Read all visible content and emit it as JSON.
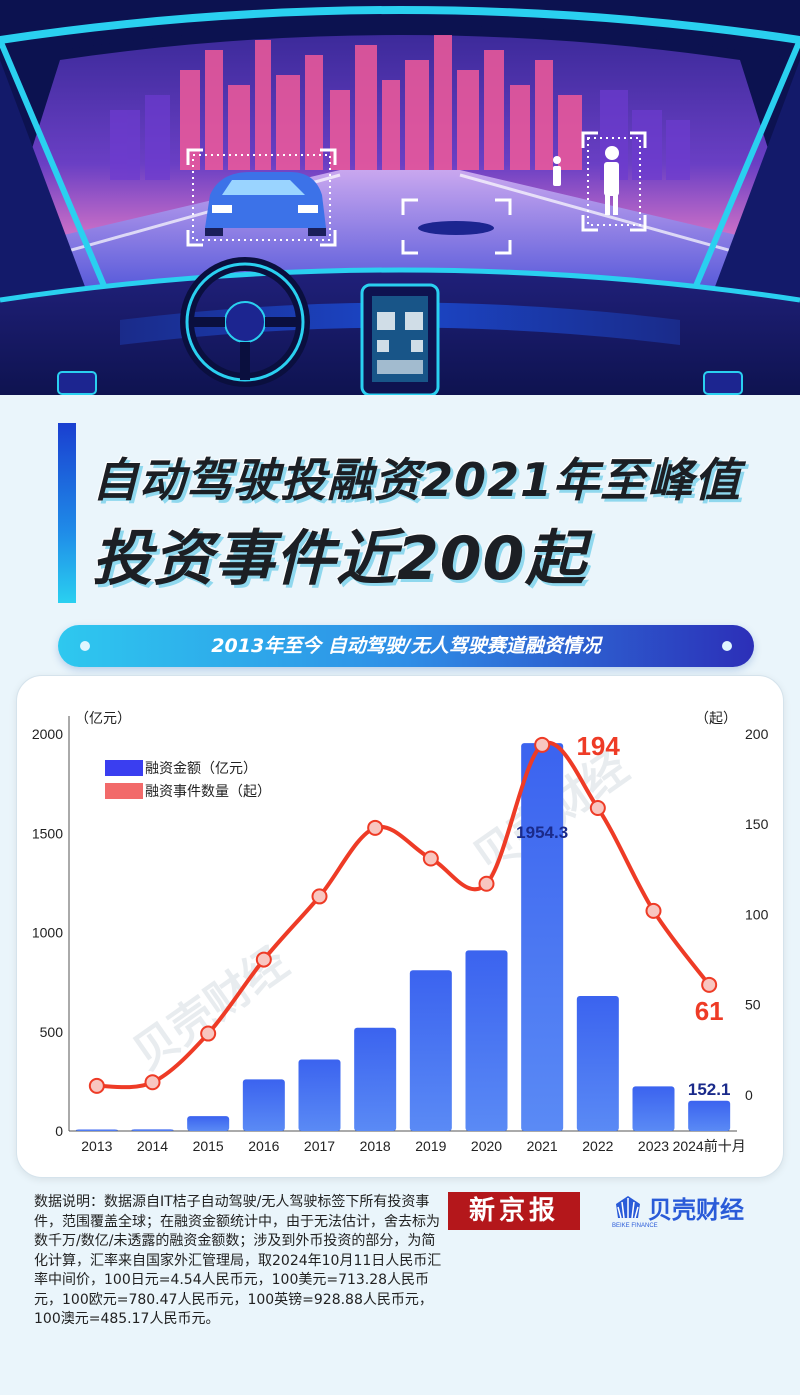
{
  "headline": {
    "line1": "自动驾驶投融资2021年至峰值",
    "line2": "投资事件近200起"
  },
  "banner": {
    "text": "2013年至今 自动驾驶/无人驾驶赛道融资情况"
  },
  "colors": {
    "bar": "#3a66ee",
    "line": "#ee3b26",
    "label_dark": "#1a2a8a",
    "label_red": "#ee3b26"
  },
  "chart_data": {
    "type": "bar+line",
    "categories": [
      "2013",
      "2014",
      "2015",
      "2016",
      "2017",
      "2018",
      "2019",
      "2020",
      "2021",
      "2022",
      "2023",
      "2024前十月"
    ],
    "y_left": {
      "unit": "（亿元）",
      "ticks": [
        0,
        500,
        1000,
        1500,
        2000
      ],
      "range": [
        0,
        2000
      ]
    },
    "y_right": {
      "unit": "（起）",
      "ticks": [
        0,
        50,
        100,
        150,
        200
      ],
      "range": [
        -20,
        200
      ]
    },
    "series": [
      {
        "name": "融资金额（亿元）",
        "type": "bar",
        "axis": "left",
        "values": [
          2,
          8,
          75,
          260,
          360,
          520,
          810,
          910,
          1954.3,
          680,
          225,
          152.1
        ]
      },
      {
        "name": "融资事件数量（起）",
        "type": "line",
        "axis": "right",
        "values": [
          5,
          7,
          34,
          75,
          110,
          148,
          131,
          117,
          194,
          159,
          102,
          61
        ]
      }
    ],
    "data_labels": [
      {
        "series": 0,
        "index": 8,
        "text": "1954.3"
      },
      {
        "series": 0,
        "index": 11,
        "text": "152.1"
      },
      {
        "series": 1,
        "index": 8,
        "text": "194"
      },
      {
        "series": 1,
        "index": 11,
        "text": "61"
      }
    ],
    "legend_position": "top-left",
    "grid": false
  },
  "watermark": "贝壳财经",
  "footer": {
    "source_note": "数据说明：数据源自IT桔子自动驾驶/无人驾驶标签下所有投资事件，范围覆盖全球；在融资金额统计中，由于无法估计，舍去标为数千万/数亿/未透露的融资金额数；涉及到外币投资的部分，为简化计算，汇率来自国家外汇管理局，取2024年10月11日人民币汇率中间价，100日元=4.54人民币元，100美元=713.28人民币元，100欧元=780.47人民币元，100英镑=928.88人民币元，100澳元=485.17人民币元。",
    "paper_logo": "新京报",
    "brand_logo": "贝壳财经",
    "brand_logo_sub": "BEIKE FINANCE"
  }
}
